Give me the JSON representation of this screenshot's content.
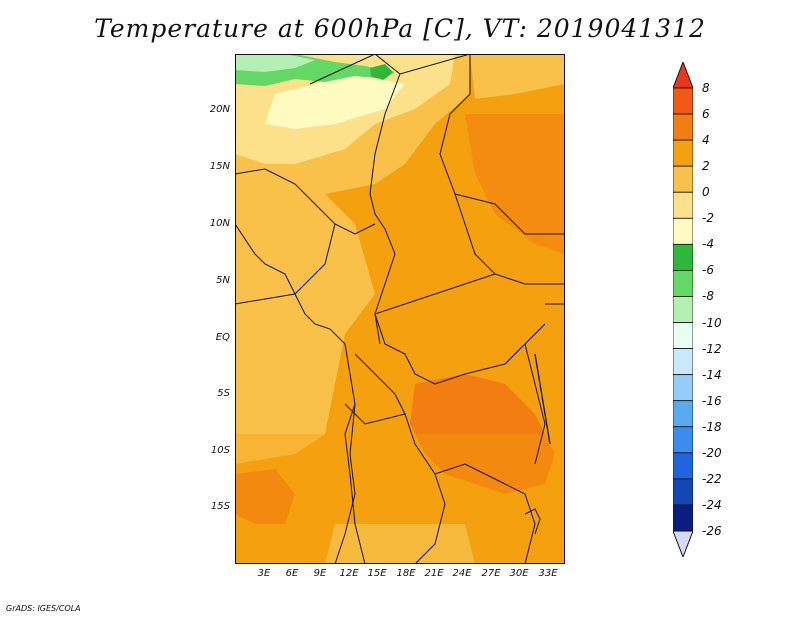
{
  "title": "Temperature at 600hPa [C], VT: 2019041312",
  "footer": "GrADS: IGES/COLA",
  "map": {
    "lat_labels": [
      "20N",
      "15N",
      "10N",
      "5N",
      "EQ",
      "5S",
      "10S",
      "15S"
    ],
    "lon_labels": [
      "3E",
      "6E",
      "9E",
      "12E",
      "15E",
      "18E",
      "21E",
      "24E",
      "27E",
      "30E",
      "33E"
    ]
  },
  "colorbar": {
    "labels": [
      "8",
      "6",
      "4",
      "2",
      "0",
      "-2",
      "-4",
      "-6",
      "-8",
      "-10",
      "-12",
      "-14",
      "-16",
      "-18",
      "-20",
      "-22",
      "-24",
      "-26"
    ],
    "colors": [
      "#e8381c",
      "#f05a14",
      "#f27d10",
      "#f5a00f",
      "#f9c04a",
      "#fde08a",
      "#fffac0",
      "#2db83a",
      "#64d865",
      "#b4f0b4",
      "#e6fff0",
      "#c8e8fc",
      "#96ccf8",
      "#5aaaf0",
      "#3c8cf0",
      "#1e64dc",
      "#1446b4",
      "#0a1e82",
      "#d8d8f5"
    ]
  }
}
